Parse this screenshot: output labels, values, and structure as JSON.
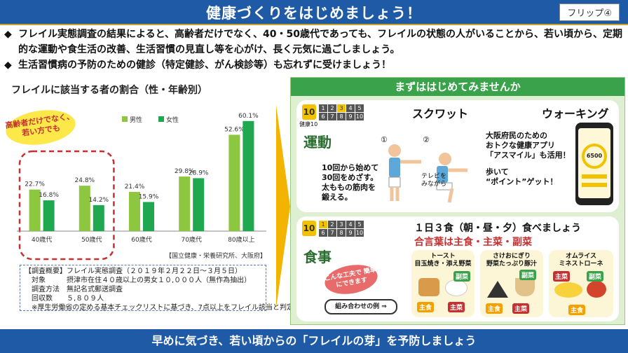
{
  "header": {
    "title": "健康づくりをはじめましょう！",
    "flip": "フリップ④"
  },
  "bullets": [
    {
      "mark": "◆",
      "text": "フレイル実態調査の結果によると、高齢者だけでなく、40・50歳代であっても、フレイルの状態の人がいることから、若い頃から、定期的な運動や食生活の改善、生活習慣の見直し等を心がけ、長く元気に過ごしましょう。"
    },
    {
      "mark": "◆",
      "text": "生活習慣病の予防のための健診（特定健診、がん検診等）も忘れずに受けましょう！"
    }
  ],
  "left": {
    "title": "フレイルに該当する者の割合（性・年齢別）",
    "callout": "高齢者だけでなく、若い方でも",
    "source": "【国立健康・栄養研究所、大阪府】",
    "survey": [
      "【調査概要】フレイル実態調査（２０１９年２月２２日～３月５日）",
      "対象　　　摂津市在住４０歳以上の男女１０,０００人（無作為抽出）",
      "調査方法　無記名式郵送調査",
      "回収数　　５,８０９人",
      "※厚生労働省の定める基本チェックリストに基づき、7点以上をフレイル該当と判定"
    ]
  },
  "chart_data": {
    "type": "bar",
    "categories": [
      "40歳代",
      "50歳代",
      "60歳代",
      "70歳代",
      "80歳以上"
    ],
    "series": [
      {
        "name": "男性",
        "color": "#8dc63f",
        "values": [
          22.7,
          24.8,
          21.4,
          29.8,
          52.6
        ]
      },
      {
        "name": "女性",
        "color": "#1fa84f",
        "values": [
          16.8,
          14.2,
          15.9,
          28.9,
          60.1
        ]
      }
    ],
    "value_labels": {
      "男性": [
        "22.7%",
        "24.8%",
        "21.4%",
        "29.8%",
        "52.6%"
      ],
      "女性": [
        "16.8%",
        "14.2%",
        "15.9%",
        "28.9%",
        "60.1%"
      ]
    },
    "ylim": [
      0,
      65
    ],
    "legend": "top-center",
    "grid": false
  },
  "right": {
    "header": "まずははじめてみませんか",
    "exercise": {
      "label": "運動",
      "icon_text": "10",
      "icon_sub": "健康10",
      "numbers": [
        "1",
        "2",
        "3",
        "4",
        "5",
        "6",
        "7",
        "8",
        "9",
        "10"
      ],
      "highlight": [
        "3"
      ],
      "squat_title": "スクワット",
      "walk_title": "ウォーキング",
      "step1": "①",
      "step2": "②",
      "tv": "テレビを みながら",
      "squat_desc": [
        "10回から始めて",
        "30回をめざす。",
        "太ももの筋肉を",
        "鍛える。"
      ],
      "walk_desc": [
        "大阪府民のための",
        "おトクな健康アプリ",
        "「アスマイル」も活用！",
        "",
        "歩いて",
        "“ポイント”ゲット！"
      ],
      "app_value": "6500"
    },
    "meal": {
      "label": "食事",
      "icon_text": "10",
      "numbers": [
        "1",
        "2",
        "3",
        "4",
        "5",
        "6",
        "7",
        "8",
        "9",
        "10"
      ],
      "highlight": [
        "1"
      ],
      "line1": "１日３食（朝・昼・夕）食べましょう",
      "line2": "合言葉は主食・主菜・副菜",
      "callout": "こんな工夫で 簡単にできます",
      "combo_btn": "組み合わせの例 ⇒",
      "examples": [
        {
          "name": [
            "トースト",
            "目玉焼き・添え野菜"
          ]
        },
        {
          "name": [
            "さけおにぎり",
            "野菜たっぷり豚汁"
          ]
        },
        {
          "name": [
            "オムライス",
            "ミネストローネ"
          ]
        }
      ],
      "tags": {
        "staple": "主食",
        "main": "主菜",
        "side": "副菜"
      }
    }
  },
  "footer": "早めに気づき、若い頃からの「フレイルの芽」を予防しましょう"
}
